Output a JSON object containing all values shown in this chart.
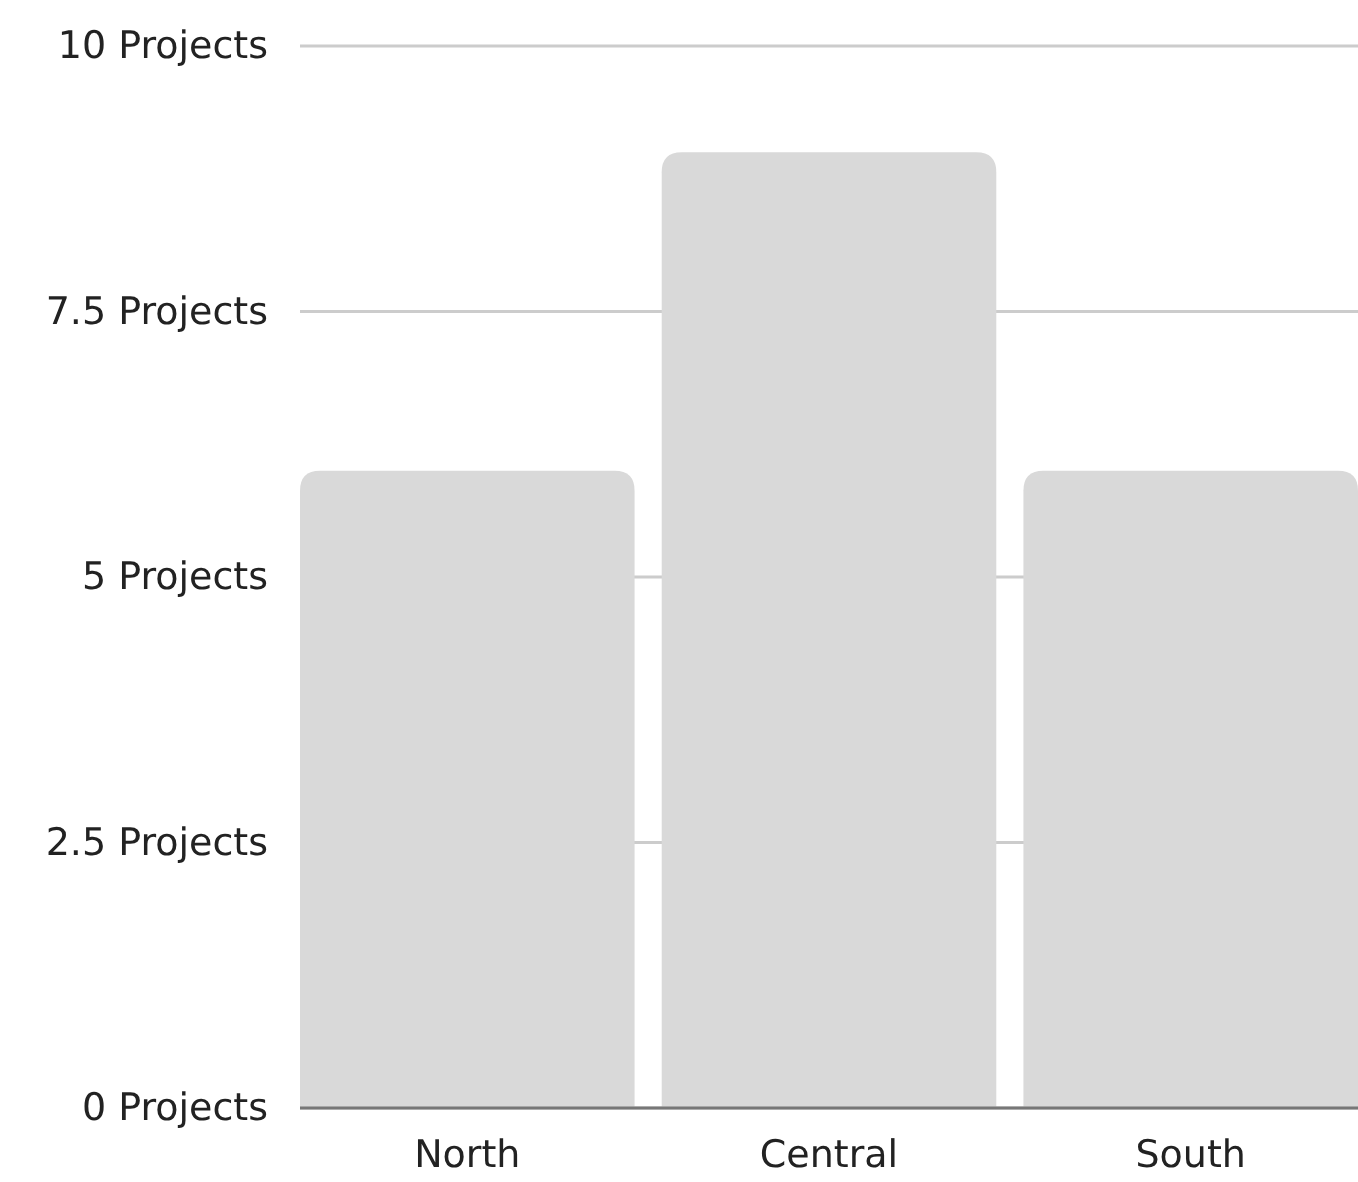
{
  "chart_data": {
    "type": "bar",
    "categories": [
      "North",
      "Central",
      "South"
    ],
    "values": [
      6,
      9,
      6
    ],
    "color": "#d9d9d9",
    "ylim": [
      0,
      10
    ],
    "yticks": [
      {
        "value": 0,
        "label": "0 Projects"
      },
      {
        "value": 2.5,
        "label": "2.5 Projects"
      },
      {
        "value": 5,
        "label": "5 Projects"
      },
      {
        "value": 7.5,
        "label": "7.5 Projects"
      },
      {
        "value": 10,
        "label": "10 Projects"
      }
    ],
    "grid": "y"
  }
}
